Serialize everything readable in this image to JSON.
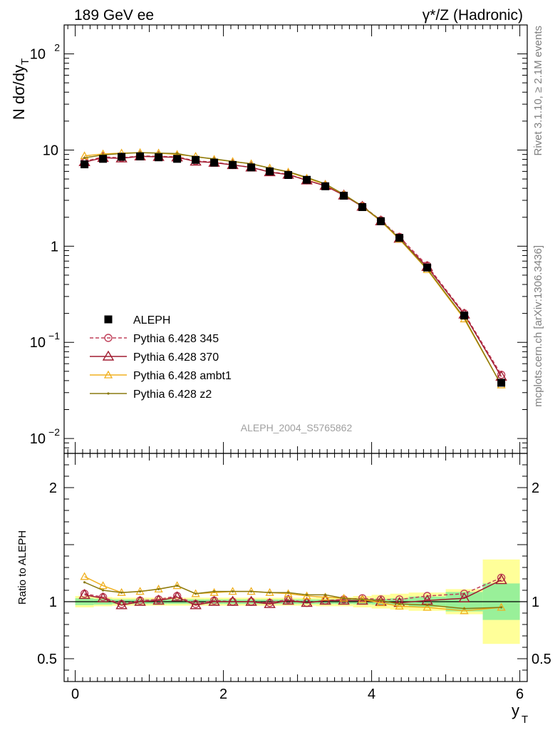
{
  "header": {
    "left_title": "189 GeV ee",
    "right_title": "γ*/Z (Hadronic)",
    "side_label_top": "Rivet 3.1.10, ≥ 2.1M events",
    "side_label_bottom": "mcplots.cern.ch [arXiv:1306.3436]",
    "analysis_id": "ALEPH_2004_S5765862"
  },
  "colors": {
    "data": "#000000",
    "p345": "#c0405a",
    "p370": "#a01c30",
    "ambt1": "#f0b020",
    "z2": "#8a7a10",
    "band_inner": "#99f099",
    "band_outer": "#ffff99"
  },
  "chart_data": [
    {
      "type": "line",
      "name": "main",
      "ylabel": "N dσ/dy_T",
      "ylim": [
        0.007,
        200
      ],
      "yscale": "log",
      "xlim": [
        -0.15,
        6.1
      ],
      "yticks": [
        {
          "value": 0.01,
          "label": "10",
          "exp": "−2"
        },
        {
          "value": 0.1,
          "label": "10",
          "exp": "−1"
        },
        {
          "value": 1,
          "label": "1",
          "exp": ""
        },
        {
          "value": 10,
          "label": "10",
          "exp": ""
        },
        {
          "value": 100,
          "label": "10",
          "exp": "2"
        }
      ],
      "x": [
        0.125,
        0.375,
        0.625,
        0.875,
        1.125,
        1.375,
        1.625,
        1.875,
        2.125,
        2.375,
        2.625,
        2.875,
        3.125,
        3.375,
        3.625,
        3.875,
        4.125,
        4.375,
        4.75,
        5.25,
        5.75
      ],
      "series": [
        {
          "name": "ALEPH",
          "key": "data",
          "marker": "square",
          "values": [
            7.1,
            8.1,
            8.5,
            8.6,
            8.4,
            8.1,
            7.9,
            7.4,
            7.0,
            6.6,
            6.0,
            5.5,
            4.9,
            4.2,
            3.35,
            2.55,
            1.82,
            1.22,
            0.6,
            0.19,
            0.038
          ]
        },
        {
          "name": "Pythia 6.428 345",
          "key": "p345",
          "marker": "circle",
          "dashed": true,
          "values": [
            7.6,
            8.5,
            8.3,
            8.7,
            8.6,
            8.5,
            7.7,
            7.5,
            7.0,
            6.6,
            5.95,
            5.6,
            4.85,
            4.25,
            3.4,
            2.62,
            1.86,
            1.25,
            0.63,
            0.2,
            0.046
          ]
        },
        {
          "name": "Pythia 6.428 370",
          "key": "p370",
          "marker": "triangle",
          "values": [
            7.5,
            8.3,
            8.2,
            8.6,
            8.5,
            8.4,
            7.6,
            7.4,
            7.0,
            6.6,
            5.9,
            5.55,
            4.85,
            4.25,
            3.38,
            2.58,
            1.82,
            1.2,
            0.61,
            0.195,
            0.044
          ]
        },
        {
          "name": "Pythia 6.428 ambt1",
          "key": "ambt1",
          "marker": "triangle-open",
          "values": [
            8.7,
            9.1,
            9.3,
            9.4,
            9.3,
            9.0,
            8.6,
            8.0,
            7.6,
            7.2,
            6.5,
            5.9,
            5.1,
            4.4,
            3.45,
            2.6,
            1.82,
            1.18,
            0.57,
            0.175,
            0.036
          ]
        },
        {
          "name": "Pythia 6.428 z2",
          "key": "z2",
          "marker": "dot",
          "values": [
            8.3,
            8.9,
            9.2,
            9.4,
            9.3,
            9.2,
            8.5,
            8.1,
            7.6,
            7.2,
            6.5,
            5.95,
            5.2,
            4.45,
            3.45,
            2.6,
            1.85,
            1.2,
            0.58,
            0.18,
            0.036
          ]
        }
      ]
    },
    {
      "type": "line",
      "name": "ratio",
      "ylabel": "Ratio to ALEPH",
      "xlabel": "y_T",
      "ylim": [
        0.3,
        2.3
      ],
      "xlim": [
        -0.15,
        6.1
      ],
      "yticks": [
        {
          "value": 0.5,
          "label": "0.5"
        },
        {
          "value": 1,
          "label": "1"
        },
        {
          "value": 2,
          "label": "2"
        }
      ],
      "xticks": [
        {
          "value": 0,
          "label": "0"
        },
        {
          "value": 2,
          "label": "2"
        },
        {
          "value": 4,
          "label": "4"
        },
        {
          "value": 6,
          "label": "6"
        }
      ],
      "bands": {
        "edges": [
          0,
          0.25,
          0.5,
          0.75,
          1.0,
          1.25,
          1.5,
          1.75,
          2.0,
          2.25,
          2.5,
          2.75,
          3.0,
          3.25,
          3.5,
          3.75,
          4.0,
          4.25,
          4.5,
          5.0,
          5.5,
          6.0
        ],
        "inner": [
          0.03,
          0.025,
          0.02,
          0.02,
          0.02,
          0.02,
          0.02,
          0.02,
          0.02,
          0.02,
          0.02,
          0.02,
          0.02,
          0.02,
          0.02,
          0.022,
          0.025,
          0.03,
          0.045,
          0.085,
          0.16
        ],
        "outer": [
          0.05,
          0.04,
          0.035,
          0.035,
          0.035,
          0.035,
          0.035,
          0.035,
          0.035,
          0.035,
          0.035,
          0.035,
          0.035,
          0.04,
          0.04,
          0.05,
          0.06,
          0.07,
          0.08,
          0.11,
          0.37
        ]
      },
      "series": [
        {
          "name": "Pythia 6.428 345",
          "key": "p345",
          "marker": "circle",
          "dashed": true,
          "values": [
            1.07,
            1.04,
            0.98,
            1.01,
            1.02,
            1.05,
            0.98,
            1.01,
            1.0,
            1.0,
            0.99,
            1.02,
            0.99,
            1.01,
            1.02,
            1.03,
            1.02,
            1.02,
            1.05,
            1.07,
            1.21
          ]
        },
        {
          "name": "Pythia 6.428 370",
          "key": "p370",
          "marker": "triangle",
          "values": [
            1.06,
            1.03,
            0.97,
            1.0,
            1.01,
            1.04,
            0.97,
            1.0,
            1.0,
            1.0,
            0.98,
            1.01,
            0.99,
            1.01,
            1.01,
            1.01,
            1.0,
            0.99,
            1.01,
            1.03,
            1.19
          ]
        },
        {
          "name": "Pythia 6.428 ambt1",
          "key": "ambt1",
          "marker": "triangle-open",
          "values": [
            1.22,
            1.14,
            1.08,
            1.09,
            1.11,
            1.14,
            1.07,
            1.08,
            1.09,
            1.09,
            1.08,
            1.07,
            1.05,
            1.04,
            1.03,
            1.02,
            0.99,
            0.96,
            0.95,
            0.92,
            0.95
          ]
        },
        {
          "name": "Pythia 6.428 z2",
          "key": "z2",
          "marker": "dot",
          "values": [
            1.17,
            1.1,
            1.08,
            1.09,
            1.11,
            1.14,
            1.07,
            1.09,
            1.09,
            1.09,
            1.08,
            1.08,
            1.06,
            1.06,
            1.03,
            1.02,
            1.01,
            0.98,
            0.97,
            0.94,
            0.95
          ]
        }
      ]
    }
  ]
}
